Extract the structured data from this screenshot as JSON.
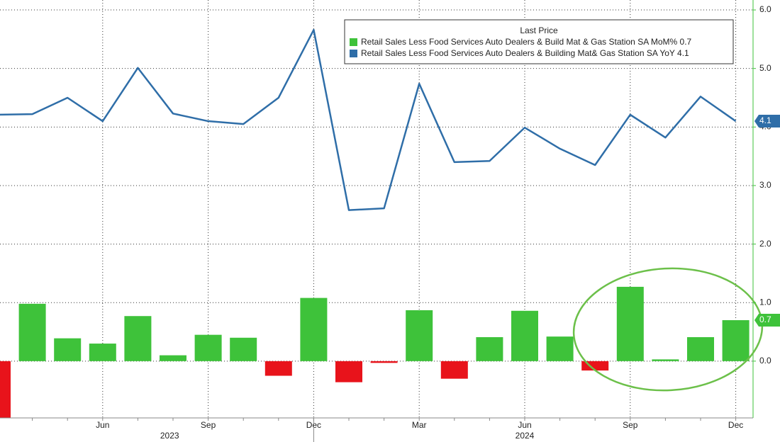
{
  "chart_data": {
    "type": "bar_line",
    "legend_title": "Last Price",
    "categories": [
      null,
      null,
      null,
      "Jun",
      null,
      null,
      "Sep",
      null,
      null,
      "Dec",
      null,
      null,
      "Mar",
      null,
      null,
      "Jun",
      null,
      null,
      "Sep",
      null,
      null,
      "Dec"
    ],
    "year_labels": [
      "2023",
      "2024"
    ],
    "series": [
      {
        "name": "Retail Sales Less Food Services Auto Dealers & Build Mat & Gas Station SA MoM%",
        "type": "bar",
        "color": "#3ec23a",
        "negative_color": "#e8131b",
        "values": [
          -0.97,
          0.98,
          0.39,
          0.3,
          0.77,
          0.1,
          0.45,
          0.4,
          -0.25,
          1.08,
          -0.36,
          -0.03,
          0.87,
          -0.3,
          0.41,
          0.86,
          0.42,
          -0.16,
          1.27,
          0.03,
          0.41,
          0.7
        ]
      },
      {
        "name": "Retail Sales Less Food Services Auto Dealers & Building Mat& Gas Station SA YoY",
        "type": "line",
        "color": "#2f6ea8",
        "values": [
          4.21,
          4.22,
          4.5,
          4.1,
          5.01,
          4.23,
          4.1,
          4.05,
          4.5,
          5.66,
          2.58,
          2.61,
          4.74,
          3.4,
          3.42,
          3.99,
          3.63,
          3.35,
          4.21,
          3.82,
          4.52,
          4.1
        ]
      }
    ],
    "ylim": [
      -0.97,
      6.17
    ],
    "yticks": [
      {
        "value": 0,
        "label": "0.0"
      },
      {
        "value": 1,
        "label": "1.0"
      },
      {
        "value": 2,
        "label": "2.0"
      },
      {
        "value": 3,
        "label": "3.0"
      },
      {
        "value": 4,
        "label": "4.0"
      },
      {
        "value": 5,
        "label": "5.0"
      },
      {
        "value": 6,
        "label": "6.0"
      }
    ],
    "grid": true
  }
}
